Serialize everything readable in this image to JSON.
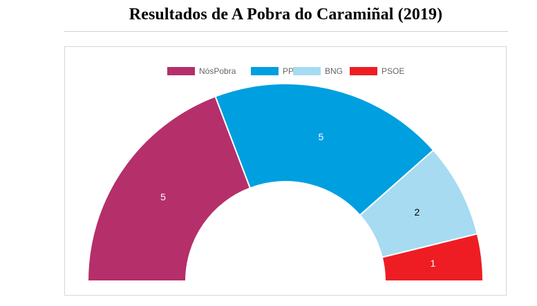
{
  "title": "Resultados de A Pobra do Caramiñal (2019)",
  "chart_data": {
    "type": "pie",
    "variant": "half-doughnut",
    "categories": [
      "NósPobra",
      "PP",
      "BNG",
      "PSOE"
    ],
    "values": [
      5,
      5,
      2,
      1
    ],
    "data_labels": [
      "5",
      "5",
      "2",
      "1"
    ],
    "colors": [
      "#b52f6a",
      "#009fdf",
      "#a6dbf2",
      "#ee1d23"
    ],
    "label_colors": [
      "#ffffff",
      "#ffffff",
      "#000000",
      "#ffffff"
    ],
    "legend": "top-center",
    "title": "Resultados de A Pobra do Caramiñal (2019)"
  }
}
